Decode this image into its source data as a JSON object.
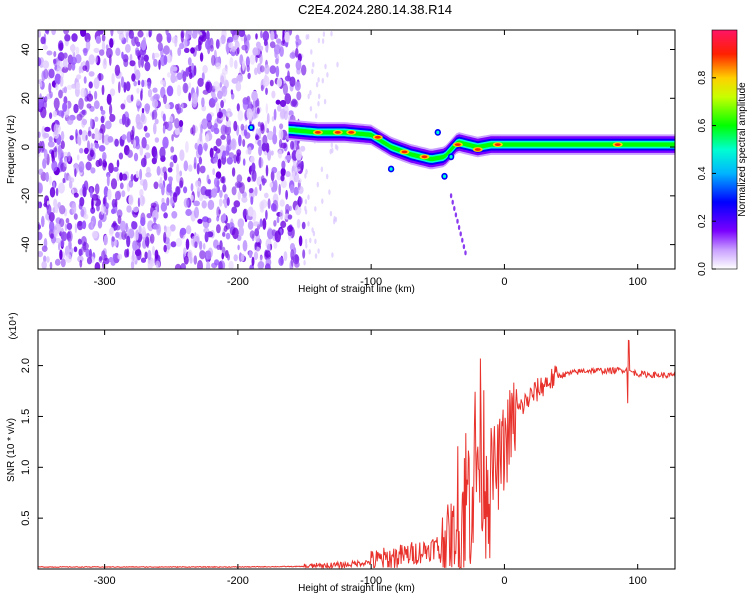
{
  "page_title": "C2E4.2024.280.14.38.R14",
  "chart_data": [
    {
      "type": "heatmap",
      "title": "C2E4.2024.280.14.38.R14",
      "xlabel": "Height of straight line (km)",
      "ylabel": "Frequency (Hz)",
      "xlim": [
        -350,
        128
      ],
      "ylim": [
        -50,
        48
      ],
      "xticks": [
        -300,
        -200,
        -100,
        0,
        100
      ],
      "yticks": [
        -40,
        -20,
        0,
        20,
        40
      ],
      "colorbar": {
        "label": "Normalized spectral amplitude",
        "range": [
          0,
          1
        ],
        "ticks": [
          "0.0",
          "0.2",
          "0.4",
          "0.6",
          "0.8"
        ],
        "colors": [
          "#ffffff",
          "#9b30ff",
          "#0000ff",
          "#00ffff",
          "#00ff00",
          "#ffff00",
          "#ff0000",
          "#ff1493"
        ]
      },
      "ridge": {
        "x": [
          -190,
          -160,
          -140,
          -120,
          -100,
          -85,
          -70,
          -55,
          -45,
          -35,
          -20,
          -10,
          0,
          40,
          80,
          128
        ],
        "frequency": [
          8,
          7,
          6,
          6,
          5,
          0,
          -3,
          -5,
          -4,
          2,
          0,
          1,
          1,
          1,
          1,
          1
        ]
      },
      "noise_region_x": [
        -350,
        -155
      ],
      "grid": false
    },
    {
      "type": "line",
      "xlabel": "Height of straight line (km)",
      "ylabel": "SNR (10 * v/v)",
      "y_multiplier": "(x10⁴)",
      "xlim": [
        -350,
        128
      ],
      "ylim": [
        0,
        2.35
      ],
      "xticks": [
        -300,
        -200,
        -100,
        0,
        100
      ],
      "yticks": [
        "0.5",
        "1.0",
        "1.5",
        "2.0"
      ],
      "color": "#e8312b",
      "series": [
        {
          "x": [
            -350,
            -200,
            -150,
            -120,
            -100,
            -80,
            -60,
            -45,
            -35,
            -28,
            -22,
            -18,
            -14,
            -10,
            -5,
            0,
            5,
            10,
            20,
            30,
            40,
            60,
            80,
            90,
            100,
            110,
            128
          ],
          "values": [
            0.02,
            0.02,
            0.025,
            0.04,
            0.07,
            0.12,
            0.18,
            0.25,
            0.4,
            0.7,
            1.0,
            1.2,
            1.0,
            0.95,
            1.0,
            1.2,
            1.4,
            1.55,
            1.7,
            1.82,
            1.9,
            1.95,
            1.95,
            1.96,
            1.92,
            1.91,
            1.9
          ]
        }
      ],
      "grid": false
    }
  ]
}
